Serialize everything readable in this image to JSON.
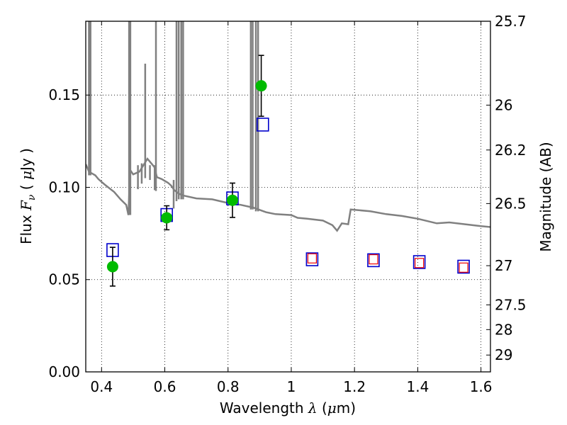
{
  "chart_data": {
    "type": "scatter",
    "xlabel_text": "Wavelength",
    "xlabel_symbol": "λ",
    "xlabel_unit_open": "(",
    "xlabel_unit_mu": "μ",
    "xlabel_unit_rest": "m)",
    "ylabel_text": "Flux",
    "ylabel_symbol": "F",
    "ylabel_subscript": "ν",
    "ylabel_unit_open": "(",
    "ylabel_unit_mu": "μ",
    "ylabel_unit_rest": "Jy )",
    "y2label": "Magnitude (AB)",
    "xlim": [
      0.35,
      1.63
    ],
    "ylim": [
      0.0,
      0.19
    ],
    "x_ticks": [
      0.4,
      0.6,
      0.8,
      1.0,
      1.2,
      1.4,
      1.6
    ],
    "x_tick_labels": [
      "0.4",
      "0.6",
      "0.8",
      "1",
      "1.2",
      "1.4",
      "1.6"
    ],
    "y_ticks": [
      0.0,
      0.05,
      0.1,
      0.15
    ],
    "y_tick_labels": [
      "0.00",
      "0.05",
      "0.10",
      "0.15"
    ],
    "y2_ticks": [
      {
        "label": "25.7",
        "mag": 25.7
      },
      {
        "label": "26",
        "mag": 26.0
      },
      {
        "label": "26.2",
        "mag": 26.2
      },
      {
        "label": "26.5",
        "mag": 26.5
      },
      {
        "label": "27",
        "mag": 27.0
      },
      {
        "label": "27.5",
        "mag": 27.5
      },
      {
        "label": "28",
        "mag": 28.0
      },
      {
        "label": "29",
        "mag": 29.0
      }
    ],
    "grid": true,
    "colors": {
      "observed": "#00bb00",
      "model_filled": "#0000cc",
      "model_inner": "#ee0000",
      "template": "#808080",
      "errorbar": "#000000"
    },
    "series": [
      {
        "kind": "observed_flux_with_errors",
        "points": [
          {
            "x": 0.435,
            "y": 0.057,
            "err": 0.0105
          },
          {
            "x": 0.606,
            "y": 0.0835,
            "err": 0.0065
          },
          {
            "x": 0.814,
            "y": 0.093,
            "err": 0.0093
          },
          {
            "x": 0.905,
            "y": 0.155,
            "err": 0.0165
          }
        ]
      },
      {
        "kind": "model_photometry_blue_squares",
        "points": [
          {
            "x": 0.435,
            "y": 0.066
          },
          {
            "x": 0.606,
            "y": 0.085
          },
          {
            "x": 0.814,
            "y": 0.094
          },
          {
            "x": 0.91,
            "y": 0.134
          },
          {
            "x": 1.066,
            "y": 0.061
          },
          {
            "x": 1.26,
            "y": 0.0605
          },
          {
            "x": 1.405,
            "y": 0.0595
          },
          {
            "x": 1.545,
            "y": 0.057
          }
        ]
      },
      {
        "kind": "model_photometry_red_inner_squares",
        "points": [
          {
            "x": 1.066,
            "y": 0.0615
          },
          {
            "x": 1.26,
            "y": 0.061
          },
          {
            "x": 1.405,
            "y": 0.059
          },
          {
            "x": 1.545,
            "y": 0.0565
          }
        ]
      },
      {
        "kind": "template_spectrum",
        "line": [
          [
            0.35,
            0.1125
          ],
          [
            0.36,
            0.1085
          ],
          [
            0.37,
            0.1075
          ],
          [
            0.38,
            0.1065
          ],
          [
            0.39,
            0.1045
          ],
          [
            0.41,
            0.1015
          ],
          [
            0.44,
            0.0975
          ],
          [
            0.46,
            0.0935
          ],
          [
            0.478,
            0.0905
          ],
          [
            0.485,
            0.085
          ],
          [
            0.49,
            0.1095
          ],
          [
            0.5,
            0.107
          ],
          [
            0.52,
            0.1085
          ],
          [
            0.545,
            0.1155
          ],
          [
            0.555,
            0.1135
          ],
          [
            0.567,
            0.111
          ],
          [
            0.575,
            0.1055
          ],
          [
            0.59,
            0.1045
          ],
          [
            0.61,
            0.1025
          ],
          [
            0.62,
            0.101
          ],
          [
            0.63,
            0.0985
          ],
          [
            0.645,
            0.0965
          ],
          [
            0.66,
            0.0955
          ],
          [
            0.7,
            0.094
          ],
          [
            0.75,
            0.0935
          ],
          [
            0.8,
            0.0915
          ],
          [
            0.84,
            0.0905
          ],
          [
            0.88,
            0.089
          ],
          [
            0.92,
            0.0865
          ],
          [
            0.95,
            0.0855
          ],
          [
            1.0,
            0.085
          ],
          [
            1.02,
            0.0835
          ],
          [
            1.05,
            0.083
          ],
          [
            1.1,
            0.082
          ],
          [
            1.13,
            0.0795
          ],
          [
            1.145,
            0.0765
          ],
          [
            1.16,
            0.0805
          ],
          [
            1.18,
            0.08
          ],
          [
            1.188,
            0.088
          ],
          [
            1.25,
            0.087
          ],
          [
            1.3,
            0.0855
          ],
          [
            1.35,
            0.0845
          ],
          [
            1.4,
            0.083
          ],
          [
            1.46,
            0.0805
          ],
          [
            1.5,
            0.081
          ],
          [
            1.55,
            0.08
          ],
          [
            1.6,
            0.079
          ],
          [
            1.63,
            0.0785
          ]
        ],
        "spikes": [
          {
            "x": 0.36,
            "from": 0.1065,
            "to": 0.19
          },
          {
            "x": 0.365,
            "from": 0.1065,
            "to": 0.19
          },
          {
            "x": 0.487,
            "from": 0.085,
            "to": 0.19
          },
          {
            "x": 0.491,
            "from": 0.085,
            "to": 0.19
          },
          {
            "x": 0.515,
            "from": 0.099,
            "to": 0.112
          },
          {
            "x": 0.527,
            "from": 0.102,
            "to": 0.113
          },
          {
            "x": 0.538,
            "from": 0.105,
            "to": 0.167
          },
          {
            "x": 0.553,
            "from": 0.104,
            "to": 0.112
          },
          {
            "x": 0.568,
            "from": 0.0985,
            "to": 0.112
          },
          {
            "x": 0.572,
            "from": 0.098,
            "to": 0.19
          },
          {
            "x": 0.628,
            "from": 0.0885,
            "to": 0.104
          },
          {
            "x": 0.637,
            "from": 0.0925,
            "to": 0.19
          },
          {
            "x": 0.644,
            "from": 0.0935,
            "to": 0.19
          },
          {
            "x": 0.652,
            "from": 0.0935,
            "to": 0.19
          },
          {
            "x": 0.658,
            "from": 0.0935,
            "to": 0.19
          },
          {
            "x": 0.872,
            "from": 0.088,
            "to": 0.19
          },
          {
            "x": 0.878,
            "from": 0.088,
            "to": 0.19
          },
          {
            "x": 0.888,
            "from": 0.087,
            "to": 0.19
          },
          {
            "x": 0.895,
            "from": 0.087,
            "to": 0.19
          }
        ]
      }
    ]
  }
}
